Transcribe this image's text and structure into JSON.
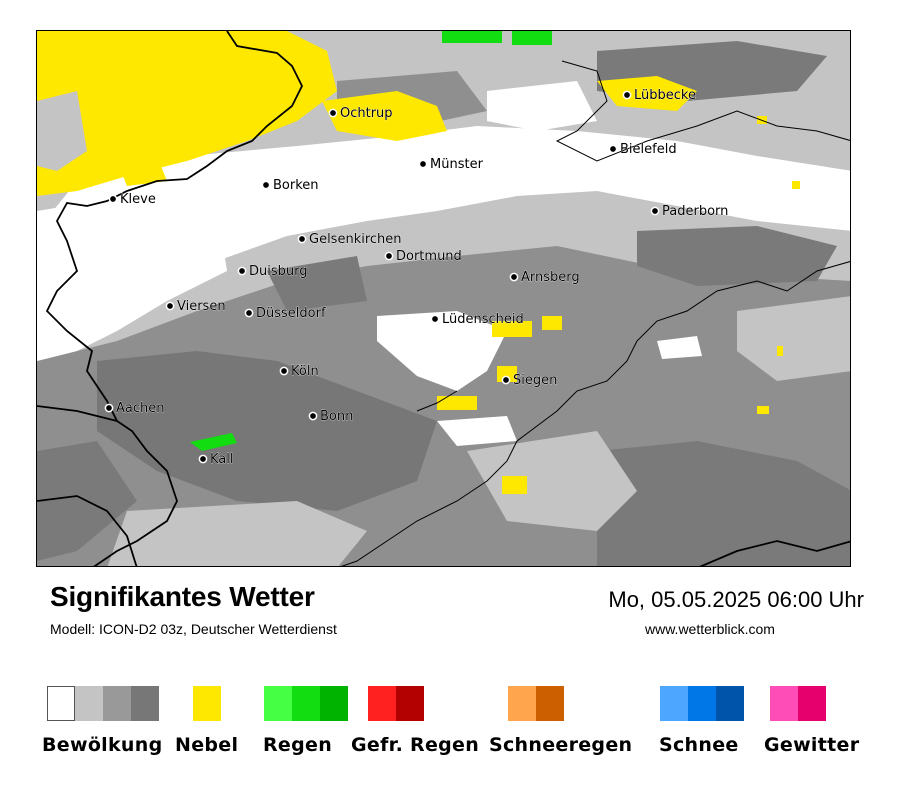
{
  "title": "Signifikantes Wetter",
  "model": "Modell: ICON-D2 03z, Deutscher Wetterdienst",
  "datetime": "Mo, 05.05.2025 06:00 Uhr",
  "website": "www.wetterblick.com",
  "map": {
    "cities": [
      {
        "name": "Lübbecke"
      },
      {
        "name": "Ochtrup"
      },
      {
        "name": "Bielefeld"
      },
      {
        "name": "Münster"
      },
      {
        "name": "Borken"
      },
      {
        "name": "Kleve"
      },
      {
        "name": "Paderborn"
      },
      {
        "name": "Gelsenkirchen"
      },
      {
        "name": "Dortmund"
      },
      {
        "name": "Duisburg"
      },
      {
        "name": "Arnsberg"
      },
      {
        "name": "Viersen"
      },
      {
        "name": "Düsseldorf"
      },
      {
        "name": "Lüdenscheid"
      },
      {
        "name": "Köln"
      },
      {
        "name": "Siegen"
      },
      {
        "name": "Aachen"
      },
      {
        "name": "Bonn"
      },
      {
        "name": "Kall"
      }
    ]
  },
  "legend": [
    {
      "label": "Bewölkung",
      "colors": [
        "#ffffff",
        "#c4c4c4",
        "#999999",
        "#777777"
      ]
    },
    {
      "label": "Nebel",
      "colors": [
        "#ffe800"
      ]
    },
    {
      "label": "Regen",
      "colors": [
        "#44ff44",
        "#11dd11",
        "#00b300"
      ]
    },
    {
      "label": "Gefr. Regen",
      "colors": [
        "#ff2020",
        "#b30000"
      ]
    },
    {
      "label": "Schneeregen",
      "colors": [
        "#ffa54d",
        "#cc6000"
      ]
    },
    {
      "label": "Schnee",
      "colors": [
        "#4da6ff",
        "#0077e6",
        "#0055aa"
      ]
    },
    {
      "label": "Gewitter",
      "colors": [
        "#ff4db8",
        "#e6006e"
      ]
    }
  ]
}
